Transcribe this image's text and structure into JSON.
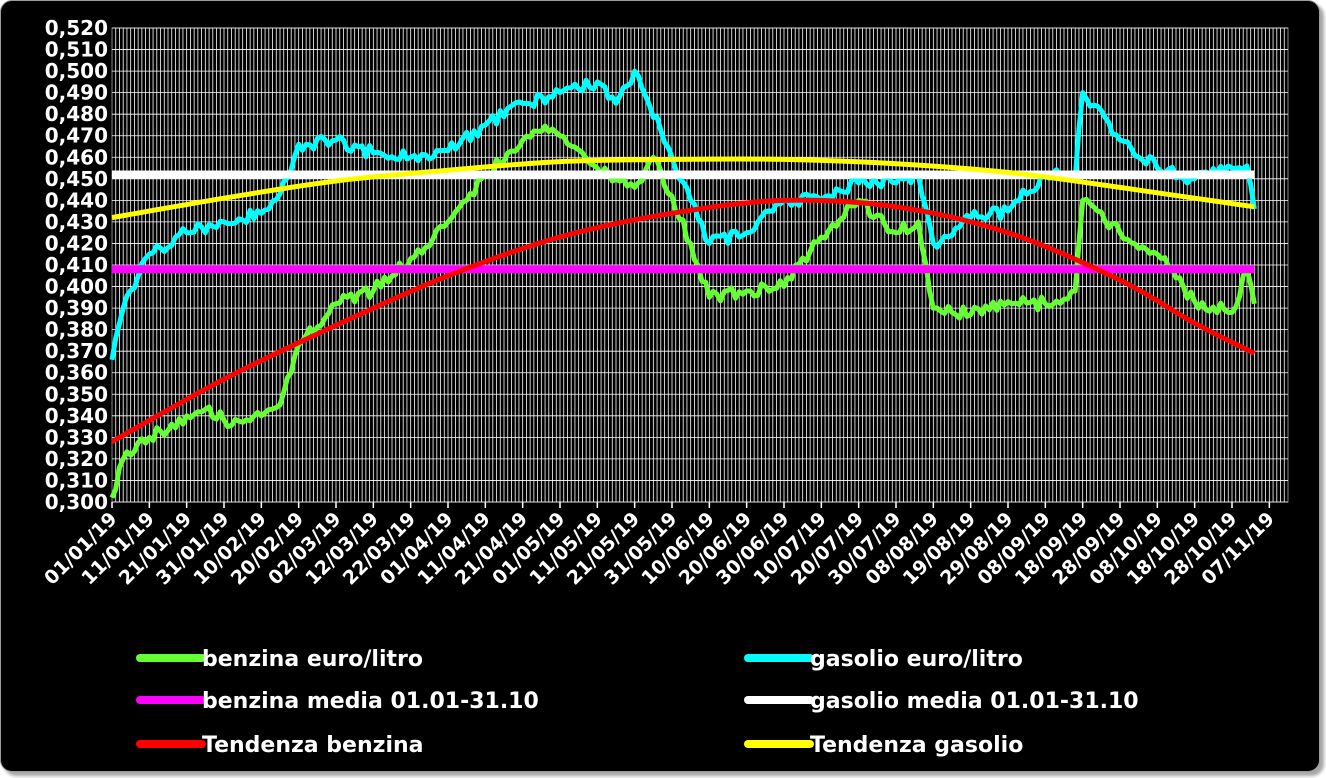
{
  "chart_data": {
    "type": "line",
    "title": "",
    "xlabel": "",
    "ylabel": "",
    "ylim": [
      0.3,
      0.52
    ],
    "y_ticks": [
      "0,300",
      "0,310",
      "0,320",
      "0,330",
      "0,340",
      "0,350",
      "0,360",
      "0,370",
      "0,380",
      "0,390",
      "0,400",
      "0,410",
      "0,420",
      "0,430",
      "0,440",
      "0,450",
      "0,460",
      "0,470",
      "0,480",
      "0,490",
      "0,500",
      "0,510",
      "0,520"
    ],
    "x_tick_labels": [
      "01/01/19",
      "11/01/19",
      "21/01/19",
      "31/01/19",
      "10/02/19",
      "20/02/19",
      "02/03/19",
      "12/03/19",
      "22/03/19",
      "01/04/19",
      "11/04/19",
      "21/04/19",
      "01/05/19",
      "11/05/19",
      "21/05/19",
      "31/05/19",
      "10/06/19",
      "20/06/19",
      "30/06/19",
      "10/07/19",
      "20/07/19",
      "30/07/19",
      "08/08/19",
      "19/08/19",
      "29/08/19",
      "08/09/19",
      "18/09/19",
      "28/09/19",
      "08/10/19",
      "18/10/19",
      "28/10/19",
      "07/11/19"
    ],
    "x_dates": [
      "2019-01-01",
      "2019-01-11",
      "2019-01-21",
      "2019-01-31",
      "2019-02-10",
      "2019-02-20",
      "2019-03-02",
      "2019-03-12",
      "2019-03-22",
      "2019-04-01",
      "2019-04-11",
      "2019-04-21",
      "2019-05-01",
      "2019-05-11",
      "2019-05-21",
      "2019-05-31",
      "2019-06-10",
      "2019-06-20",
      "2019-06-30",
      "2019-07-10",
      "2019-07-20",
      "2019-07-30",
      "2019-08-09",
      "2019-08-19",
      "2019-08-29",
      "2019-09-08",
      "2019-09-18",
      "2019-09-28",
      "2019-10-08",
      "2019-10-18",
      "2019-10-28",
      "2019-11-07"
    ],
    "grid": true,
    "legend_position": "bottom",
    "series": [
      {
        "name": "benzina euro/litro",
        "color": "#66ff33",
        "style": "noisy",
        "x": [
          "2019-01-01",
          "2019-01-04",
          "2019-01-11",
          "2019-01-21",
          "2019-01-26",
          "2019-01-31",
          "2019-02-05",
          "2019-02-10",
          "2019-02-15",
          "2019-02-20",
          "2019-03-02",
          "2019-03-12",
          "2019-03-22",
          "2019-04-01",
          "2019-04-11",
          "2019-04-21",
          "2019-04-26",
          "2019-05-01",
          "2019-05-11",
          "2019-05-21",
          "2019-05-26",
          "2019-05-31",
          "2019-06-05",
          "2019-06-10",
          "2019-06-20",
          "2019-06-30",
          "2019-07-10",
          "2019-07-20",
          "2019-07-30",
          "2019-08-05",
          "2019-08-09",
          "2019-08-19",
          "2019-08-29",
          "2019-09-08",
          "2019-09-16",
          "2019-09-18",
          "2019-09-28",
          "2019-10-08",
          "2019-10-18",
          "2019-10-28",
          "2019-11-01",
          "2019-11-03"
        ],
        "y": [
          0.302,
          0.32,
          0.33,
          0.34,
          0.343,
          0.338,
          0.337,
          0.34,
          0.345,
          0.373,
          0.392,
          0.398,
          0.413,
          0.43,
          0.452,
          0.468,
          0.472,
          0.47,
          0.455,
          0.446,
          0.46,
          0.442,
          0.42,
          0.395,
          0.398,
          0.4,
          0.423,
          0.44,
          0.425,
          0.43,
          0.39,
          0.387,
          0.393,
          0.392,
          0.398,
          0.44,
          0.425,
          0.415,
          0.393,
          0.388,
          0.408,
          0.392
        ]
      },
      {
        "name": "gasolio euro/litro",
        "color": "#00ffff",
        "style": "noisy",
        "x": [
          "2019-01-01",
          "2019-01-04",
          "2019-01-11",
          "2019-01-21",
          "2019-01-31",
          "2019-02-10",
          "2019-02-15",
          "2019-02-20",
          "2019-03-02",
          "2019-03-12",
          "2019-03-22",
          "2019-04-01",
          "2019-04-11",
          "2019-04-21",
          "2019-05-01",
          "2019-05-11",
          "2019-05-16",
          "2019-05-21",
          "2019-05-31",
          "2019-06-05",
          "2019-06-10",
          "2019-06-20",
          "2019-06-30",
          "2019-07-10",
          "2019-07-20",
          "2019-07-30",
          "2019-08-05",
          "2019-08-09",
          "2019-08-19",
          "2019-08-29",
          "2019-09-08",
          "2019-09-16",
          "2019-09-18",
          "2019-09-28",
          "2019-10-08",
          "2019-10-18",
          "2019-10-28",
          "2019-11-01",
          "2019-11-03"
        ],
        "y": [
          0.366,
          0.39,
          0.415,
          0.425,
          0.43,
          0.434,
          0.443,
          0.466,
          0.468,
          0.462,
          0.46,
          0.463,
          0.475,
          0.485,
          0.49,
          0.495,
          0.485,
          0.5,
          0.46,
          0.44,
          0.42,
          0.425,
          0.44,
          0.44,
          0.448,
          0.448,
          0.452,
          0.42,
          0.432,
          0.435,
          0.452,
          0.45,
          0.49,
          0.468,
          0.455,
          0.45,
          0.455,
          0.456,
          0.436
        ]
      },
      {
        "name": "benzina media 01.01-31.10",
        "color": "#ff00ff",
        "style": "flat",
        "x": [
          "2019-01-01",
          "2019-11-03"
        ],
        "y": [
          0.408,
          0.408
        ]
      },
      {
        "name": "gasolio media 01.01-31.10",
        "color": "#ffffff",
        "style": "flat",
        "x": [
          "2019-01-01",
          "2019-11-03"
        ],
        "y": [
          0.452,
          0.452
        ]
      },
      {
        "name": "Tendenza benzina",
        "color": "#ff0000",
        "style": "smooth",
        "x": [
          "2019-01-01",
          "2019-01-31",
          "2019-03-02",
          "2019-04-01",
          "2019-05-01",
          "2019-05-31",
          "2019-06-30",
          "2019-07-30",
          "2019-08-29",
          "2019-09-28",
          "2019-10-18",
          "2019-11-03"
        ],
        "y": [
          0.328,
          0.357,
          0.382,
          0.405,
          0.423,
          0.434,
          0.44,
          0.437,
          0.425,
          0.403,
          0.383,
          0.369
        ]
      },
      {
        "name": "Tendenza gasolio",
        "color": "#ffff00",
        "style": "smooth",
        "x": [
          "2019-01-01",
          "2019-01-31",
          "2019-03-02",
          "2019-04-01",
          "2019-05-01",
          "2019-05-31",
          "2019-06-30",
          "2019-07-30",
          "2019-08-29",
          "2019-09-28",
          "2019-10-18",
          "2019-11-03"
        ],
        "y": [
          0.432,
          0.441,
          0.449,
          0.454,
          0.458,
          0.459,
          0.459,
          0.457,
          0.453,
          0.446,
          0.441,
          0.437
        ]
      }
    ],
    "legend": [
      {
        "label": "benzina euro/litro",
        "color": "#66ff33"
      },
      {
        "label": "gasolio euro/litro",
        "color": "#00ffff"
      },
      {
        "label": "benzina media 01.01-31.10",
        "color": "#ff00ff"
      },
      {
        "label": "gasolio media 01.01-31.10",
        "color": "#ffffff"
      },
      {
        "label": "Tendenza benzina",
        "color": "#ff0000"
      },
      {
        "label": "Tendenza gasolio",
        "color": "#ffff00"
      }
    ],
    "colors": {
      "background": "#000000",
      "gridlines": "#ffffff",
      "plot_border": "#808080",
      "text": "#ffffff"
    }
  }
}
